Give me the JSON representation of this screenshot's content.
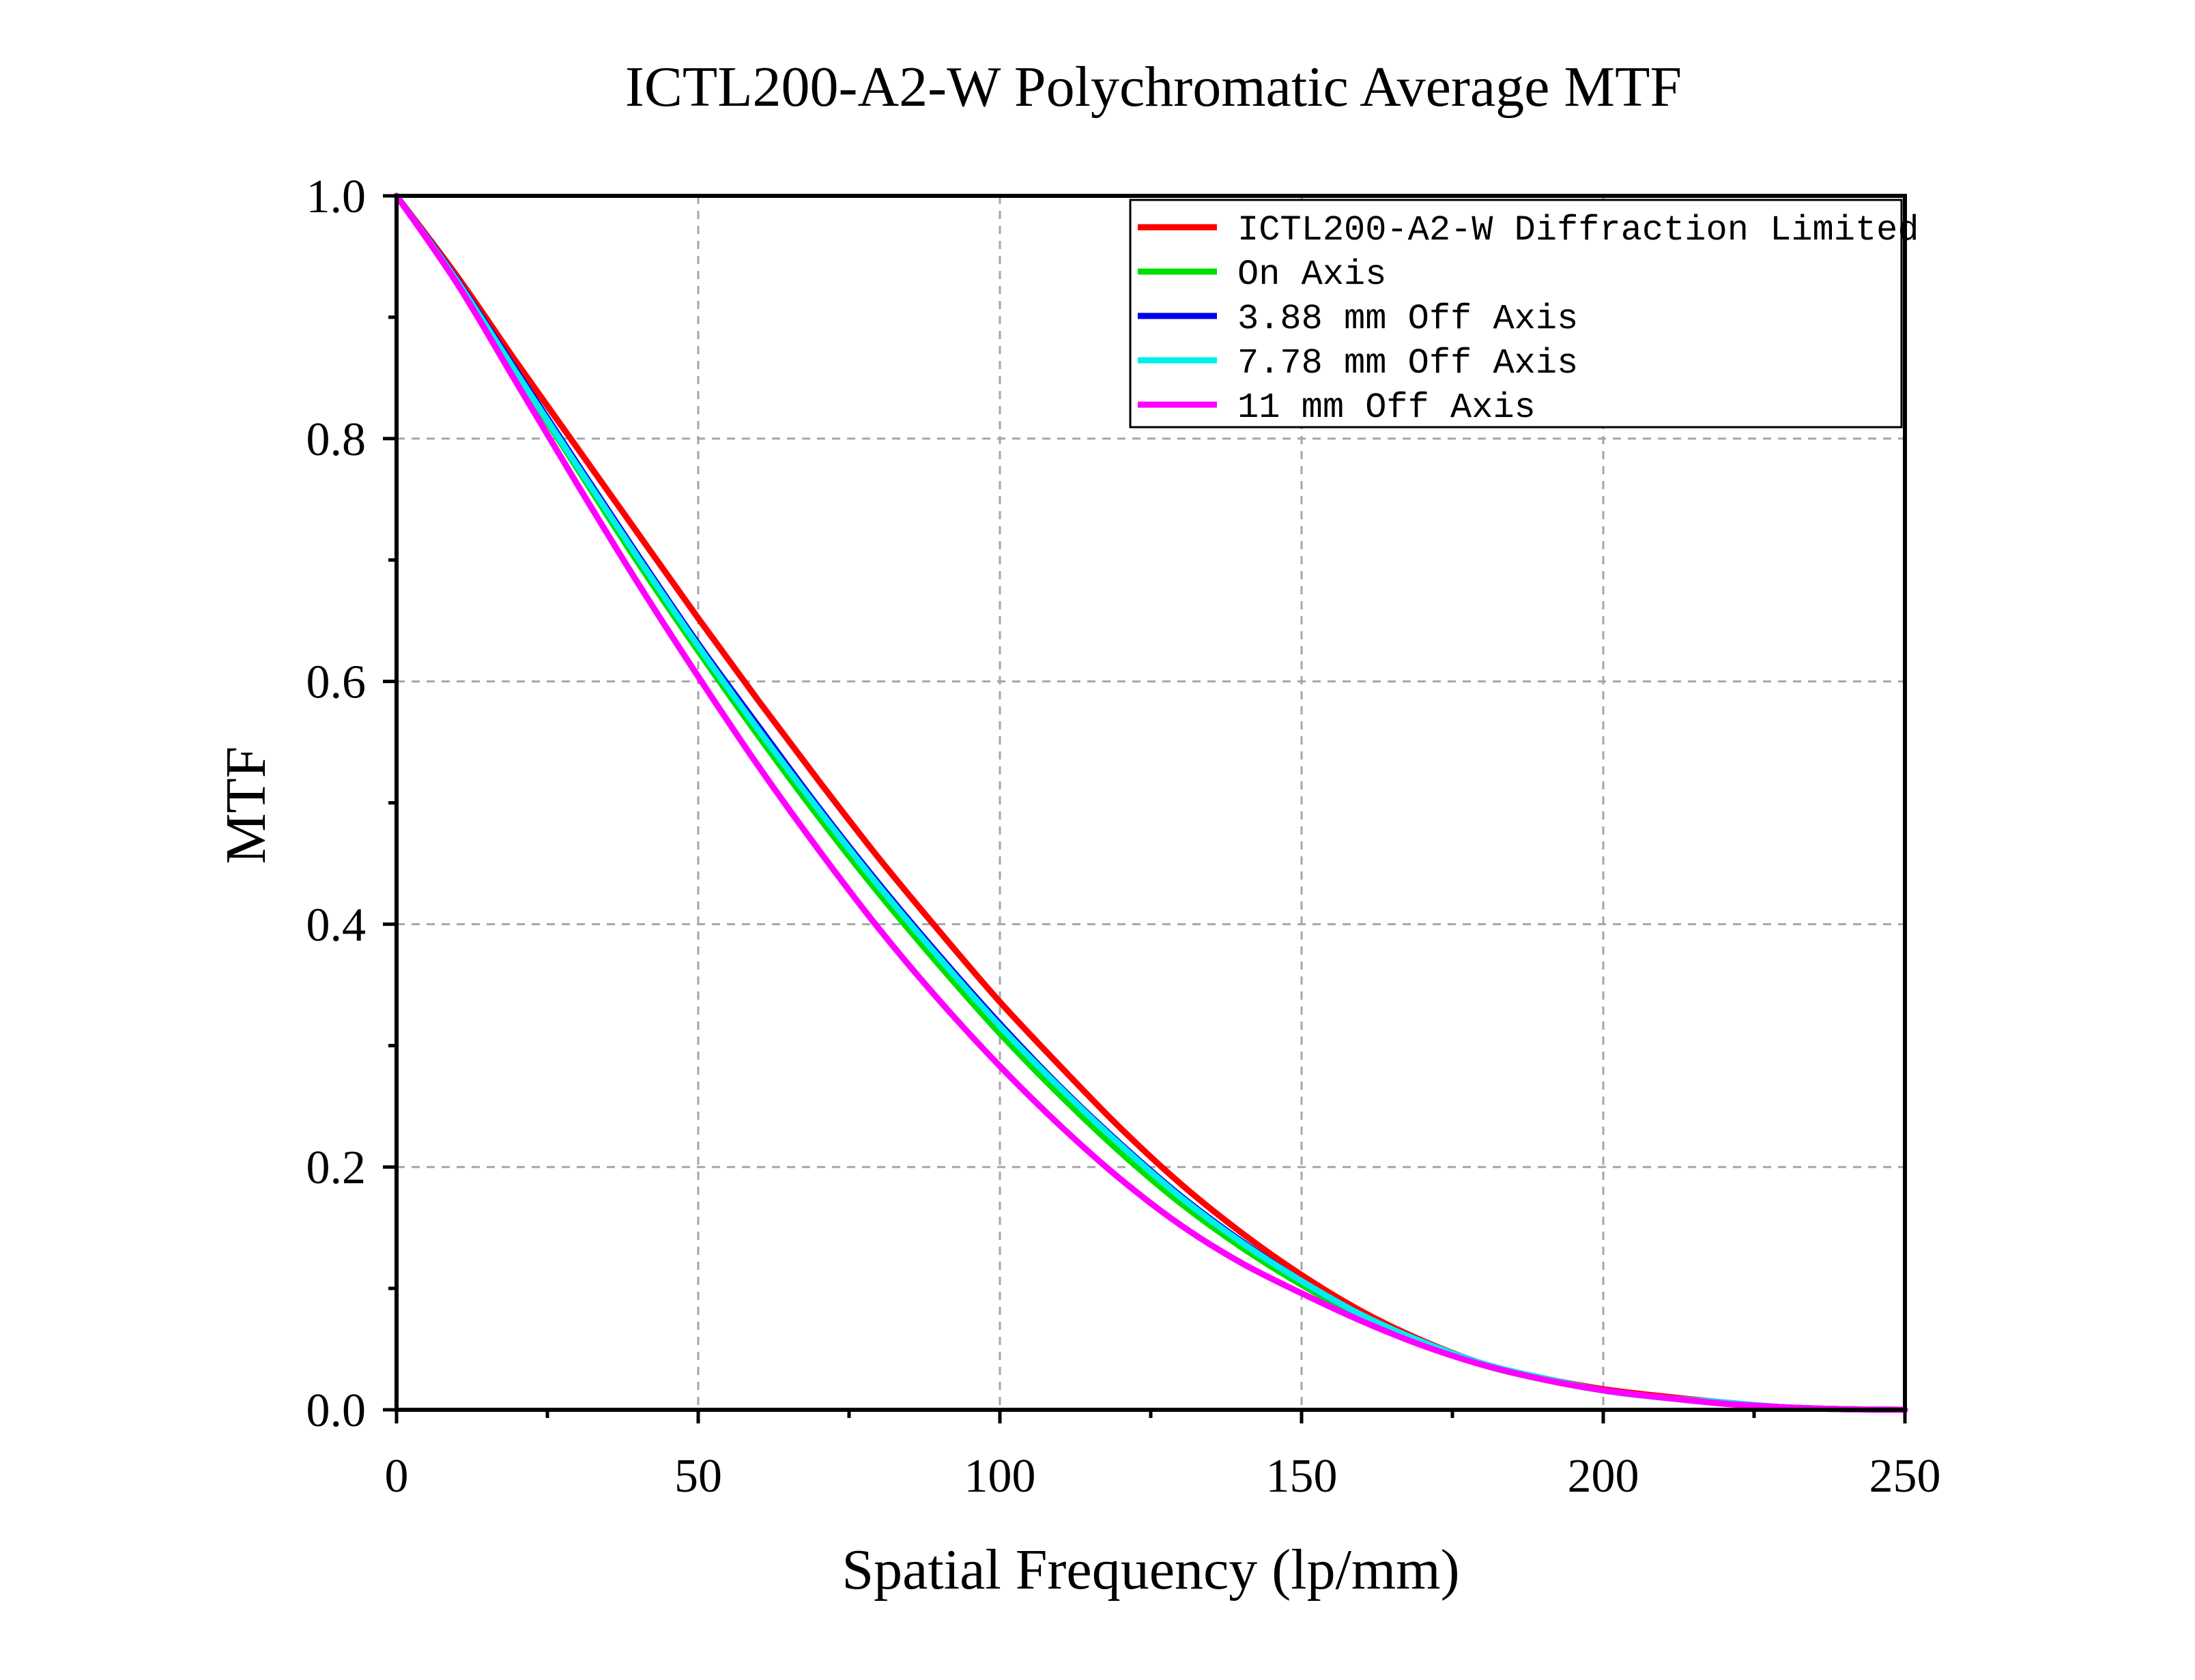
{
  "chart_data": {
    "type": "line",
    "title": "ICTL200-A2-W Polychromatic Average MTF",
    "xlabel": "Spatial Frequency (lp/mm)",
    "ylabel": "MTF",
    "xlim": [
      0,
      250
    ],
    "ylim": [
      0,
      1.0
    ],
    "x_ticks": [
      "0",
      "50",
      "100",
      "150",
      "200",
      "250"
    ],
    "y_ticks": [
      "0.0",
      "0.2",
      "0.4",
      "0.6",
      "0.8",
      "1.0"
    ],
    "grid": true,
    "legend_position": "top-right",
    "x": [
      0,
      10,
      20,
      30,
      40,
      50,
      60,
      70,
      80,
      90,
      100,
      110,
      120,
      130,
      140,
      150,
      160,
      170,
      180,
      190,
      200,
      210,
      220,
      230,
      240,
      250
    ],
    "series": [
      {
        "name": "ICTL200-A2-W Diffraction Limited",
        "color": "#ff0000",
        "values": [
          1.0,
          0.934,
          0.862,
          0.792,
          0.722,
          0.652,
          0.584,
          0.518,
          0.454,
          0.394,
          0.336,
          0.283,
          0.232,
          0.186,
          0.146,
          0.111,
          0.081,
          0.057,
          0.038,
          0.026,
          0.017,
          0.011,
          0.006,
          0.002,
          0.0005,
          0.0
        ]
      },
      {
        "name": "On Axis",
        "color": "#00e000",
        "values": [
          1.0,
          0.93,
          0.852,
          0.775,
          0.698,
          0.625,
          0.555,
          0.488,
          0.425,
          0.366,
          0.31,
          0.259,
          0.212,
          0.17,
          0.134,
          0.103,
          0.076,
          0.055,
          0.037,
          0.025,
          0.016,
          0.01,
          0.006,
          0.002,
          0.0005,
          0.0
        ]
      },
      {
        "name": "3.88 mm Off Axis",
        "color": "#0000ee",
        "values": [
          1.0,
          0.931,
          0.855,
          0.779,
          0.704,
          0.631,
          0.563,
          0.496,
          0.433,
          0.374,
          0.318,
          0.266,
          0.219,
          0.176,
          0.139,
          0.106,
          0.078,
          0.056,
          0.038,
          0.026,
          0.016,
          0.01,
          0.006,
          0.002,
          0.0005,
          0.0
        ]
      },
      {
        "name": "7.78 mm Off Axis",
        "color": "#00eeee",
        "values": [
          1.0,
          0.93,
          0.853,
          0.777,
          0.702,
          0.629,
          0.56,
          0.494,
          0.431,
          0.372,
          0.316,
          0.265,
          0.218,
          0.175,
          0.138,
          0.106,
          0.078,
          0.056,
          0.038,
          0.026,
          0.016,
          0.01,
          0.006,
          0.002,
          0.0005,
          0.0
        ]
      },
      {
        "name": "11 mm Off Axis",
        "color": "#ff00ff",
        "values": [
          1.0,
          0.928,
          0.845,
          0.762,
          0.681,
          0.604,
          0.53,
          0.461,
          0.396,
          0.337,
          0.283,
          0.234,
          0.19,
          0.152,
          0.121,
          0.096,
          0.073,
          0.053,
          0.037,
          0.025,
          0.016,
          0.01,
          0.005,
          0.002,
          0.0005,
          0.0
        ]
      }
    ]
  }
}
